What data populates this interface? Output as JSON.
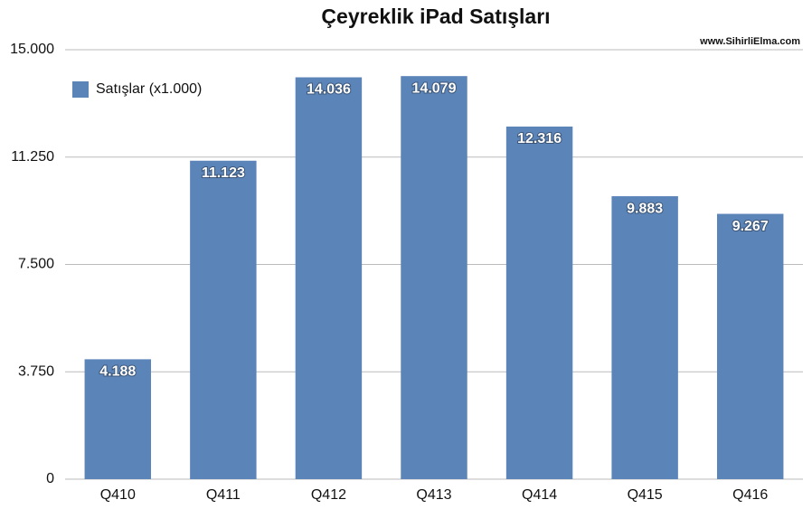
{
  "chart_data": {
    "type": "bar",
    "title": "Çeyreklik iPad Satışları",
    "annotation": "www.SihirliElma.com",
    "categories": [
      "Q410",
      "Q411",
      "Q412",
      "Q413",
      "Q414",
      "Q415",
      "Q416"
    ],
    "series": [
      {
        "name": "Satışlar (x1.000)",
        "color": "#5b84b9",
        "values": [
          4188,
          11123,
          14036,
          14079,
          12316,
          9883,
          9267
        ],
        "value_labels": [
          "4.188",
          "11.123",
          "14.036",
          "14.079",
          "12.316",
          "9.883",
          "9.267"
        ]
      }
    ],
    "ylim": [
      0,
      15000
    ],
    "yticks": [
      0,
      {
        "value": 3750,
        "label": "3.750"
      },
      {
        "value": 7500,
        "label": "7.500"
      },
      {
        "value": 11250,
        "label": "11.250"
      },
      {
        "value": 15000,
        "label": "15.000"
      }
    ],
    "grid": true,
    "legend": "top-left"
  }
}
